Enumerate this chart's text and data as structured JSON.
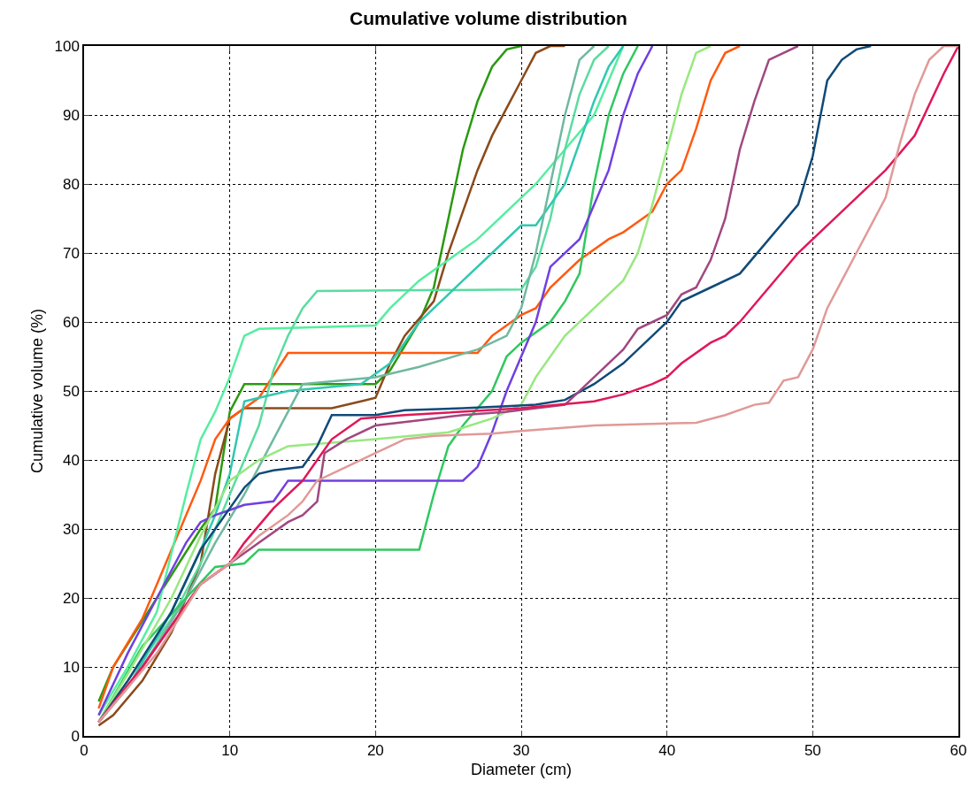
{
  "chart_data": {
    "type": "line",
    "title": "Cumulative volume distribution",
    "xlabel": "Diameter (cm)",
    "ylabel": "Cumulative volume (%)",
    "xlim": [
      0,
      60
    ],
    "ylim": [
      0,
      100
    ],
    "xticks": [
      0,
      10,
      20,
      30,
      40,
      50,
      60
    ],
    "yticks": [
      0,
      10,
      20,
      30,
      40,
      50,
      60,
      70,
      80,
      90,
      100
    ],
    "grid": true,
    "line_style": "solid",
    "marker": "none",
    "series": [
      {
        "color": "#2a9a10",
        "x": [
          1,
          2,
          5,
          8,
          9,
          10,
          11,
          20,
          21,
          23,
          24,
          25,
          26,
          27,
          28,
          29,
          30
        ],
        "values": [
          5,
          10,
          20,
          30,
          33,
          47,
          51,
          51,
          53,
          60,
          65,
          75,
          85,
          92,
          97,
          99.5,
          100
        ]
      },
      {
        "color": "#8b4a1a",
        "x": [
          1,
          2,
          4,
          6,
          8,
          9,
          10,
          11,
          17,
          19,
          20,
          21,
          22,
          24,
          25,
          26,
          27,
          28,
          29,
          30,
          31,
          32,
          33
        ],
        "values": [
          1.5,
          3,
          8,
          15,
          25,
          38,
          46,
          47.5,
          47.5,
          48.5,
          49,
          54,
          58,
          63,
          70,
          76,
          82,
          87,
          91,
          95,
          99,
          100,
          100
        ]
      },
      {
        "color": "#ff5a10",
        "x": [
          1,
          2,
          4,
          6,
          8,
          9,
          10,
          12,
          14,
          27,
          28,
          30,
          31,
          32,
          34,
          36,
          37,
          39,
          40,
          41,
          42,
          43,
          44,
          45
        ],
        "values": [
          4,
          10,
          17,
          27,
          37,
          43,
          46,
          49,
          55.5,
          55.5,
          58,
          61,
          62,
          65,
          69,
          72,
          73,
          76,
          80,
          82,
          88,
          95,
          99,
          100
        ]
      },
      {
        "color": "#55eea0",
        "x": [
          1,
          3,
          5,
          7,
          8,
          9,
          10,
          11,
          12,
          20,
          21,
          23,
          25,
          27,
          29,
          31,
          33,
          35,
          36,
          37
        ],
        "values": [
          3,
          10,
          18,
          35,
          43,
          47,
          52,
          58,
          59,
          59.5,
          62,
          66,
          69,
          72,
          76,
          80,
          85,
          90,
          95,
          100
        ]
      },
      {
        "color": "#5adca0",
        "x": [
          1,
          3,
          6,
          8,
          10,
          12,
          13,
          14,
          15,
          16,
          30,
          31,
          32,
          33,
          34,
          35,
          36
        ],
        "values": [
          2,
          8,
          17,
          25,
          35,
          45,
          53,
          58,
          62,
          64.5,
          64.7,
          68,
          75,
          85,
          93,
          98,
          100
        ]
      },
      {
        "color": "#30c8b0",
        "x": [
          1,
          3,
          6,
          8,
          9,
          10,
          11,
          12,
          14,
          19,
          21,
          23,
          25,
          26,
          28,
          30,
          31,
          33,
          34,
          35,
          36,
          37
        ],
        "values": [
          2,
          7,
          18,
          27,
          32,
          38,
          48.5,
          49,
          50,
          51,
          54,
          60,
          64,
          66,
          70,
          74,
          74,
          80,
          86,
          92,
          97,
          100
        ]
      },
      {
        "color": "#70b8a0",
        "x": [
          1,
          4,
          7,
          9,
          11,
          13,
          14,
          15,
          20,
          23,
          27,
          29,
          30,
          31,
          32,
          33,
          34,
          35
        ],
        "values": [
          2,
          10,
          20,
          28,
          35,
          43,
          47,
          51,
          52,
          53.5,
          56,
          58,
          62,
          70,
          80,
          90,
          98,
          100
        ]
      },
      {
        "color": "#30c860",
        "x": [
          1,
          4,
          7,
          9,
          11,
          12,
          23,
          24,
          25,
          26,
          28,
          29,
          30,
          32,
          33,
          34,
          35,
          36,
          37,
          38
        ],
        "values": [
          2,
          13,
          20,
          24.5,
          25,
          27,
          27,
          35,
          42,
          45,
          50,
          55,
          57,
          60,
          63,
          67,
          80,
          90,
          96,
          100
        ]
      },
      {
        "color": "#7040e0",
        "x": [
          1,
          3,
          5,
          7,
          8,
          9,
          11,
          13,
          14,
          26,
          27,
          28,
          29,
          31,
          32,
          34,
          36,
          37,
          38,
          39
        ],
        "values": [
          3,
          12,
          20,
          28,
          31,
          32,
          33.5,
          34,
          37,
          37,
          39,
          44,
          50,
          60,
          68,
          72,
          82,
          90,
          96,
          100
        ]
      },
      {
        "color": "#98e880",
        "x": [
          1,
          3,
          6,
          8,
          10,
          12,
          14,
          17,
          20,
          25,
          28,
          30,
          31,
          33,
          35,
          37,
          38,
          39,
          40,
          41,
          42,
          43
        ],
        "values": [
          2,
          9,
          20,
          29,
          37,
          40,
          42,
          42.5,
          43,
          44,
          46,
          48,
          52,
          58,
          62,
          66,
          70,
          77,
          85,
          93,
          99,
          100
        ]
      },
      {
        "color": "#104a78",
        "x": [
          1,
          3,
          6,
          8,
          10,
          11,
          12,
          13,
          15,
          16,
          17,
          20,
          22,
          26,
          29,
          31,
          33,
          35,
          37,
          39,
          40,
          41,
          43,
          45,
          47,
          49,
          50,
          51,
          52,
          53,
          54
        ],
        "values": [
          2,
          8,
          18,
          27,
          33,
          36,
          38,
          38.5,
          39,
          42,
          46.5,
          46.5,
          47.2,
          47.5,
          47.8,
          48,
          48.7,
          51,
          54,
          58,
          60,
          63,
          65,
          67,
          72,
          77,
          84,
          95,
          98,
          99.5,
          100
        ]
      },
      {
        "color": "#a04880",
        "x": [
          1,
          4,
          8,
          10,
          12,
          14,
          15,
          16,
          16.5,
          18,
          20,
          24,
          26,
          29,
          33,
          35,
          37,
          38,
          39,
          40,
          41,
          42,
          43,
          44,
          45,
          46,
          47,
          49
        ],
        "values": [
          2,
          10,
          22,
          25,
          28,
          31,
          32,
          34,
          41,
          43,
          45,
          46,
          46.5,
          47,
          48,
          52,
          56,
          59,
          60,
          61,
          64,
          65,
          69,
          75,
          85,
          92,
          98,
          100
        ]
      },
      {
        "color": "#e01858",
        "x": [
          1,
          4,
          8,
          10,
          11,
          13,
          15,
          16,
          17,
          19,
          22,
          30,
          35,
          37,
          39,
          40,
          41,
          43,
          44,
          45,
          47,
          49,
          51,
          53,
          55,
          57,
          59,
          60
        ],
        "values": [
          2,
          10,
          22,
          25,
          28,
          33,
          37,
          40,
          43,
          46,
          46.5,
          47.5,
          48.5,
          49.5,
          51,
          52,
          54,
          57,
          58,
          60,
          65,
          70,
          74,
          78,
          82,
          87,
          96,
          100
        ]
      },
      {
        "color": "#e09a98",
        "x": [
          1,
          5,
          8,
          10,
          12,
          14,
          15,
          16,
          18,
          20,
          22,
          24,
          28,
          30,
          35,
          40,
          42,
          44,
          46,
          47,
          48,
          49,
          50,
          51,
          52,
          53,
          55,
          56,
          57,
          58,
          59,
          60
        ],
        "values": [
          2,
          12,
          22,
          25,
          29,
          32,
          34,
          37,
          39,
          41,
          43,
          43.5,
          43.8,
          44.2,
          45,
          45.3,
          45.4,
          46.5,
          48,
          48.3,
          51.5,
          52,
          56,
          62,
          66,
          70,
          78,
          86,
          93,
          98,
          100,
          100
        ]
      }
    ]
  }
}
